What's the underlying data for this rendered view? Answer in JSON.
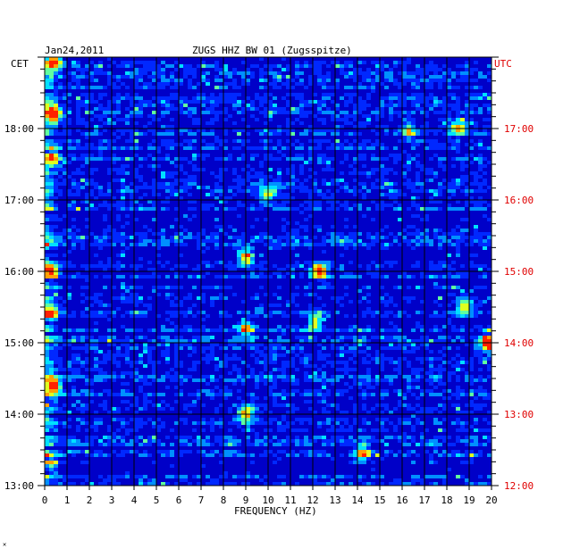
{
  "chart_data": {
    "type": "heatmap",
    "title_date": "Jan24,2011",
    "title_station": "ZUGS HHZ BW 01 (Zugsspitze)",
    "left_tz": "CET",
    "right_tz": "UTC",
    "xlabel": "FREQUENCY (HZ)",
    "xlim": [
      0,
      20
    ],
    "x_ticks": [
      "0",
      "1",
      "2",
      "3",
      "4",
      "5",
      "6",
      "7",
      "8",
      "9",
      "10",
      "11",
      "12",
      "13",
      "14",
      "15",
      "16",
      "17",
      "18",
      "19",
      "20"
    ],
    "y_ticks_left": [
      {
        "label": "18:00",
        "hours_from_bottom": 5
      },
      {
        "label": "17:00",
        "hours_from_bottom": 4
      },
      {
        "label": "16:00",
        "hours_from_bottom": 3
      },
      {
        "label": "15:00",
        "hours_from_bottom": 2
      },
      {
        "label": "14:00",
        "hours_from_bottom": 1
      },
      {
        "label": "13:00",
        "hours_from_bottom": 0
      }
    ],
    "y_ticks_right": [
      {
        "label": "17:00",
        "hours_from_bottom": 5
      },
      {
        "label": "16:00",
        "hours_from_bottom": 4
      },
      {
        "label": "15:00",
        "hours_from_bottom": 3
      },
      {
        "label": "14:00",
        "hours_from_bottom": 2
      },
      {
        "label": "13:00",
        "hours_from_bottom": 1
      },
      {
        "label": "12:00",
        "hours_from_bottom": 0
      }
    ],
    "hours_span": 6,
    "grid": true,
    "colormap": [
      "#00008a",
      "#0000c8",
      "#0028ff",
      "#0090ff",
      "#00e0ff",
      "#60ffa0",
      "#e0ff20",
      "#ffa000",
      "#ff2000"
    ],
    "hot_spots": [
      {
        "x": 0.4,
        "h": 5.95,
        "v": 0.95
      },
      {
        "x": 0.4,
        "h": 5.2,
        "v": 0.85
      },
      {
        "x": 0.4,
        "h": 4.6,
        "v": 0.6
      },
      {
        "x": 0.3,
        "h": 3.0,
        "v": 0.7
      },
      {
        "x": 0.3,
        "h": 2.4,
        "v": 0.75
      },
      {
        "x": 0.4,
        "h": 1.4,
        "v": 0.8
      },
      {
        "x": 0.3,
        "h": 0.3,
        "v": 0.6
      },
      {
        "x": 9.0,
        "h": 3.2,
        "v": 0.8
      },
      {
        "x": 9.0,
        "h": 2.2,
        "v": 0.7
      },
      {
        "x": 9.0,
        "h": 1.0,
        "v": 0.7
      },
      {
        "x": 12.3,
        "h": 3.0,
        "v": 0.85
      },
      {
        "x": 12.1,
        "h": 2.3,
        "v": 0.75
      },
      {
        "x": 14.2,
        "h": 0.45,
        "v": 0.7
      },
      {
        "x": 18.5,
        "h": 5.0,
        "v": 0.65
      },
      {
        "x": 16.3,
        "h": 4.95,
        "v": 0.55
      },
      {
        "x": 19.8,
        "h": 2.0,
        "v": 0.8
      },
      {
        "x": 18.8,
        "h": 2.5,
        "v": 0.6
      },
      {
        "x": 10.0,
        "h": 4.1,
        "v": 0.55
      }
    ]
  }
}
